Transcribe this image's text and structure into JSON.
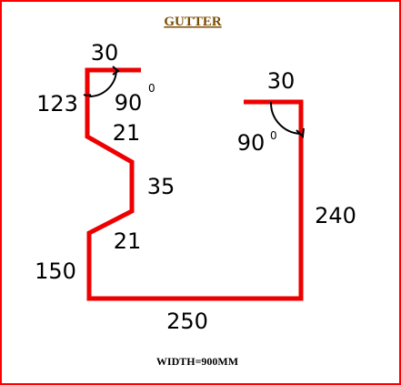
{
  "title": "GUTTER",
  "footer": "WIDTH=900MM",
  "colors": {
    "border": "#ff0000",
    "profile": "#ee0000",
    "title": "#7a4a00",
    "arc": "#000000"
  },
  "dimensions": {
    "left_lip": "30",
    "left_angle_small": "123",
    "left_angle_right": "90",
    "upper_return": "21",
    "step_face": "35",
    "lower_return": "21",
    "left_wall": "150",
    "base": "250",
    "right_wall": "240",
    "right_lip": "30",
    "right_angle": "90"
  },
  "degree_symbol": "0"
}
